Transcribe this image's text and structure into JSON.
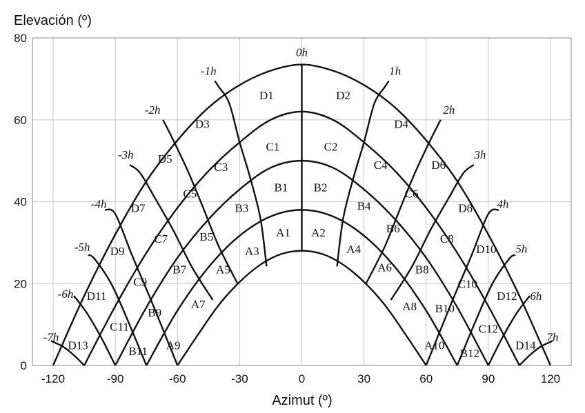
{
  "chart_data": {
    "type": "line",
    "xlabel": "Azimut (º)",
    "ylabel": "Elevación (º)",
    "xlim": [
      -130,
      130
    ],
    "ylim": [
      0,
      80
    ],
    "xticks": [
      -120,
      -90,
      -60,
      -30,
      0,
      30,
      60,
      90,
      120
    ],
    "yticks": [
      0,
      20,
      40,
      60,
      80
    ],
    "grid": true,
    "series": [
      {
        "name": "",
        "x": [
          -60,
          -50,
          -40,
          -30,
          -20,
          -10,
          0,
          10,
          20,
          30,
          40,
          50,
          60
        ],
        "y": [
          0,
          7.6,
          14.8,
          20.4,
          24.6,
          27.2,
          28,
          27.2,
          24.6,
          20.4,
          14.8,
          7.6,
          0
        ]
      },
      {
        "name": "",
        "x": [
          -75,
          -60,
          -45,
          -30,
          -15,
          0,
          15,
          30,
          45,
          60,
          75
        ],
        "y": [
          0,
          13.4,
          24,
          31.7,
          36.4,
          38,
          36.4,
          31.7,
          24,
          13.4,
          0
        ]
      },
      {
        "name": "",
        "x": [
          -90,
          -75,
          -60,
          -45,
          -30,
          -15,
          0,
          15,
          30,
          45,
          60,
          75,
          90
        ],
        "y": [
          0,
          14.2,
          26.3,
          35.7,
          43,
          48.3,
          50,
          48.3,
          43,
          35.7,
          26.3,
          14.2,
          0
        ]
      },
      {
        "name": "",
        "x": [
          -105,
          -90,
          -75,
          -60,
          -45,
          -30,
          -15,
          0,
          15,
          30,
          45,
          60,
          75,
          90,
          105
        ],
        "y": [
          0,
          14.5,
          27.5,
          38.5,
          47.5,
          54.5,
          60,
          62,
          60,
          54.5,
          47.5,
          38.5,
          27.5,
          14.5,
          0
        ]
      },
      {
        "name": "",
        "x": [
          -120,
          -105,
          -90,
          -75,
          -60,
          -45,
          -30,
          -15,
          0,
          15,
          30,
          45,
          60,
          75,
          90,
          105,
          120
        ],
        "y": [
          0,
          17,
          32,
          45,
          55,
          63,
          68.5,
          72,
          73.5,
          72,
          68.5,
          63,
          55,
          45,
          32,
          17,
          0
        ]
      }
    ],
    "hour_lines": [
      {
        "label": "0h",
        "x": [
          0,
          0
        ],
        "y": [
          28,
          73.5
        ]
      },
      {
        "label": "-1h",
        "x": [
          -17,
          -20,
          -25,
          -30,
          -35,
          -40,
          -42
        ],
        "y": [
          24.2,
          36,
          46,
          54.5,
          64,
          68,
          69.5
        ]
      },
      {
        "label": "1h",
        "x": [
          17,
          20,
          25,
          30,
          35,
          40,
          42
        ],
        "y": [
          24.2,
          36,
          46,
          54.5,
          64,
          68,
          69.5
        ]
      },
      {
        "label": "-2h",
        "x": [
          -31,
          -40,
          -48,
          -55,
          -62,
          -67
        ],
        "y": [
          20,
          29,
          39,
          47.5,
          55,
          60
        ]
      },
      {
        "label": "2h",
        "x": [
          31,
          40,
          48,
          55,
          62,
          67
        ],
        "y": [
          20,
          29,
          39,
          47.5,
          55,
          60
        ]
      },
      {
        "label": "-3h",
        "x": [
          -43,
          -53,
          -62,
          -71,
          -78,
          -83
        ],
        "y": [
          16,
          24,
          33,
          41,
          47,
          49
        ]
      },
      {
        "label": "3h",
        "x": [
          43,
          53,
          62,
          71,
          78,
          83
        ],
        "y": [
          16,
          24,
          33,
          41,
          47,
          49
        ]
      },
      {
        "label": "-4h",
        "x": [
          -60,
          -72,
          -82,
          -90,
          -95
        ],
        "y": [
          0,
          15,
          27,
          37,
          38
        ]
      },
      {
        "label": "4h",
        "x": [
          60,
          72,
          82,
          90,
          95
        ],
        "y": [
          0,
          15,
          27,
          37,
          38
        ]
      },
      {
        "label": "-5h",
        "x": [
          -75,
          -84,
          -92,
          -100,
          -103
        ],
        "y": [
          0,
          11,
          20,
          26,
          27
        ]
      },
      {
        "label": "5h",
        "x": [
          75,
          84,
          92,
          100,
          103
        ],
        "y": [
          0,
          11,
          20,
          26,
          27
        ]
      },
      {
        "label": "-6h",
        "x": [
          -90,
          -97,
          -104,
          -110
        ],
        "y": [
          0,
          7,
          13,
          17
        ]
      },
      {
        "label": "6h",
        "x": [
          90,
          97,
          104,
          110
        ],
        "y": [
          0,
          7,
          13,
          17
        ]
      },
      {
        "label": "-7h",
        "x": [
          -105,
          -110,
          -115,
          -121
        ],
        "y": [
          0,
          2.5,
          4.5,
          6
        ]
      },
      {
        "label": "7h",
        "x": [
          105,
          110,
          115,
          121
        ],
        "y": [
          0,
          2.5,
          4.5,
          6
        ]
      }
    ],
    "hour_label_positions": [
      {
        "label": "0h",
        "x": 0,
        "y": 75.5
      },
      {
        "label": "-1h",
        "x": -45,
        "y": 71
      },
      {
        "label": "1h",
        "x": 45,
        "y": 71
      },
      {
        "label": "-2h",
        "x": -72,
        "y": 61.5
      },
      {
        "label": "2h",
        "x": 71,
        "y": 61.5
      },
      {
        "label": "-3h",
        "x": -85,
        "y": 50.5
      },
      {
        "label": "3h",
        "x": 86,
        "y": 50.5
      },
      {
        "label": "-4h",
        "x": -98,
        "y": 38.5
      },
      {
        "label": "4h",
        "x": 97,
        "y": 38.5
      },
      {
        "label": "-5h",
        "x": -106,
        "y": 28
      },
      {
        "label": "5h",
        "x": 106,
        "y": 27.5
      },
      {
        "label": "-6h",
        "x": -114,
        "y": 16.5
      },
      {
        "label": "6h",
        "x": 113,
        "y": 16
      },
      {
        "label": "-7h",
        "x": -121,
        "y": 6
      },
      {
        "label": "7h",
        "x": 121,
        "y": 6
      }
    ],
    "regions": [
      {
        "label": "D1",
        "x": -17,
        "y": 66
      },
      {
        "label": "D2",
        "x": 20,
        "y": 66
      },
      {
        "label": "D3",
        "x": -48,
        "y": 59
      },
      {
        "label": "D4",
        "x": 48,
        "y": 59
      },
      {
        "label": "D5",
        "x": -66,
        "y": 50.5
      },
      {
        "label": "D6",
        "x": 66,
        "y": 49
      },
      {
        "label": "D7",
        "x": -79,
        "y": 38.5
      },
      {
        "label": "D8",
        "x": 79,
        "y": 38.5
      },
      {
        "label": "D9",
        "x": -89,
        "y": 28
      },
      {
        "label": "D10",
        "x": 89,
        "y": 28.5
      },
      {
        "label": "D11",
        "x": -99,
        "y": 17
      },
      {
        "label": "D12",
        "x": 99,
        "y": 17
      },
      {
        "label": "D13",
        "x": -108,
        "y": 5
      },
      {
        "label": "D14",
        "x": 108,
        "y": 5
      },
      {
        "label": "C1",
        "x": -14,
        "y": 53.5
      },
      {
        "label": "C2",
        "x": 14,
        "y": 53.5
      },
      {
        "label": "C3",
        "x": -39,
        "y": 48.5
      },
      {
        "label": "C4",
        "x": 38,
        "y": 49
      },
      {
        "label": "C5",
        "x": -54,
        "y": 42
      },
      {
        "label": "C6",
        "x": 53,
        "y": 42
      },
      {
        "label": "C7",
        "x": -68,
        "y": 31
      },
      {
        "label": "C8",
        "x": 70,
        "y": 31
      },
      {
        "label": "C9",
        "x": -78,
        "y": 20.5
      },
      {
        "label": "C10",
        "x": 80,
        "y": 20
      },
      {
        "label": "C11",
        "x": -88,
        "y": 9.5
      },
      {
        "label": "C12",
        "x": 90,
        "y": 9
      },
      {
        "label": "B1",
        "x": -10,
        "y": 43.5
      },
      {
        "label": "B2",
        "x": 9,
        "y": 43.5
      },
      {
        "label": "B3",
        "x": -29,
        "y": 38.5
      },
      {
        "label": "B4",
        "x": 30,
        "y": 39
      },
      {
        "label": "B5",
        "x": -46,
        "y": 31.5
      },
      {
        "label": "B6",
        "x": 44,
        "y": 33.5
      },
      {
        "label": "B7",
        "x": -59,
        "y": 23.5
      },
      {
        "label": "B8",
        "x": 58,
        "y": 23.5
      },
      {
        "label": "B9",
        "x": -71,
        "y": 13
      },
      {
        "label": "B10",
        "x": 69,
        "y": 14
      },
      {
        "label": "B11",
        "x": -79,
        "y": 3.5
      },
      {
        "label": "B12",
        "x": 81,
        "y": 3
      },
      {
        "label": "A1",
        "x": -9,
        "y": 32.5
      },
      {
        "label": "A2",
        "x": 8,
        "y": 32.5
      },
      {
        "label": "A3",
        "x": -24,
        "y": 28
      },
      {
        "label": "A4",
        "x": 25,
        "y": 28.5
      },
      {
        "label": "A5",
        "x": -38,
        "y": 23.5
      },
      {
        "label": "A6",
        "x": 40,
        "y": 24
      },
      {
        "label": "A7",
        "x": -50,
        "y": 15
      },
      {
        "label": "A8",
        "x": 52,
        "y": 14.5
      },
      {
        "label": "A9",
        "x": -62,
        "y": 5
      },
      {
        "label": "A10",
        "x": 64,
        "y": 5
      }
    ]
  }
}
